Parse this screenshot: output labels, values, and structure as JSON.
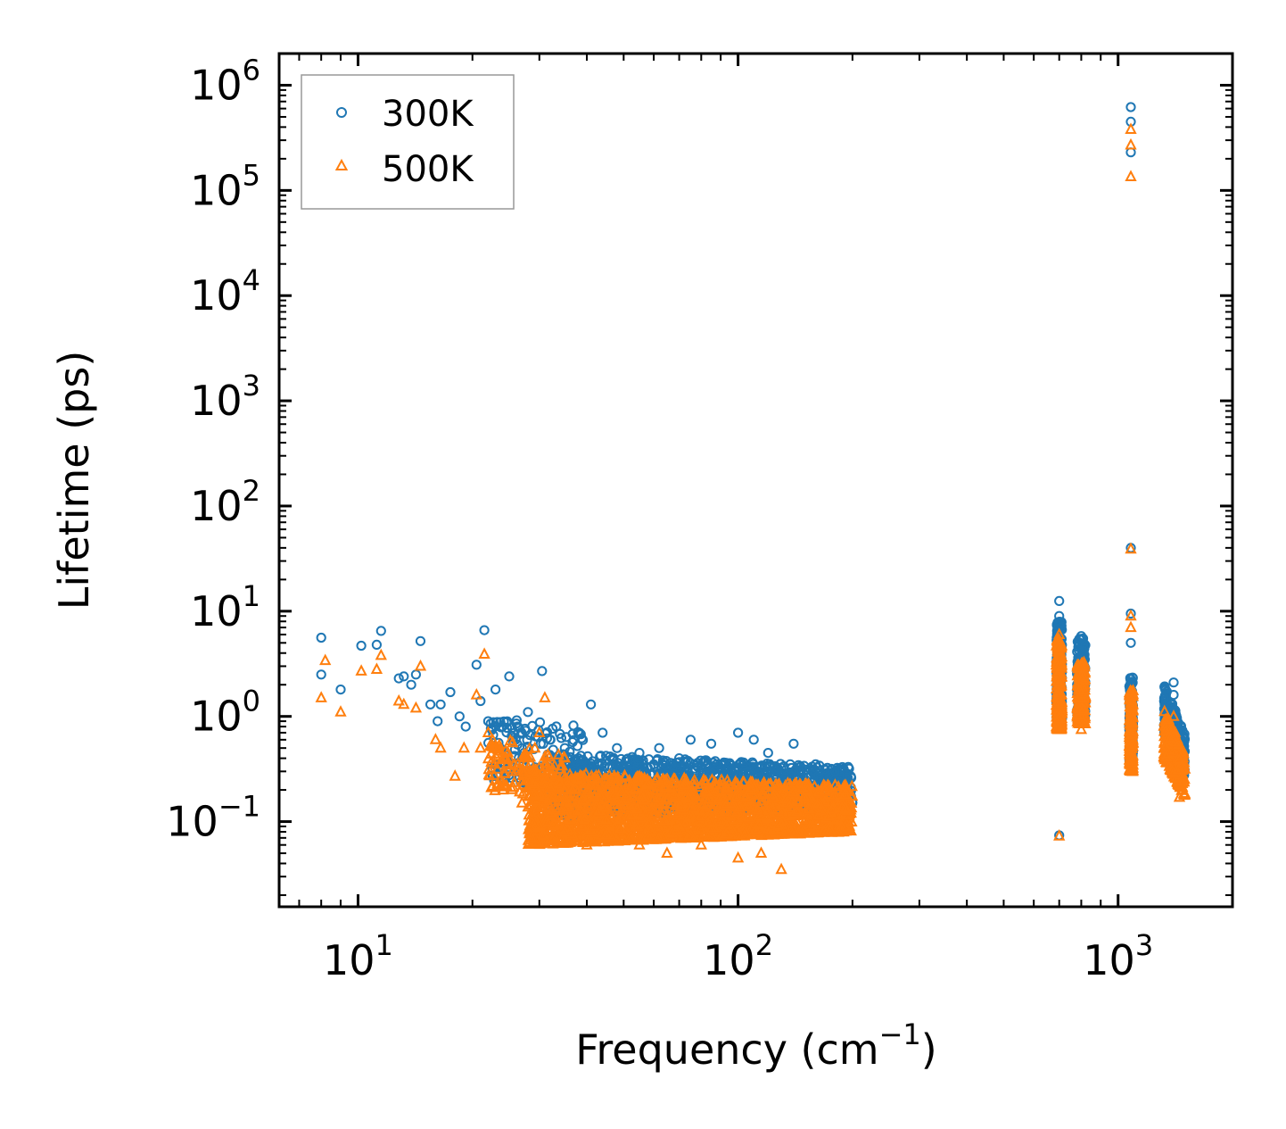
{
  "chart_data": {
    "type": "scatter",
    "title": "",
    "xlabel": "Frequency (cm",
    "xlabel_sup": "−1",
    "xlabel_suffix": ")",
    "ylabel": "Lifetime (ps)",
    "xscale": "log",
    "yscale": "log",
    "xlim": [
      6.2,
      2000
    ],
    "ylim": [
      0.0155,
      2000000
    ],
    "xticks": [
      {
        "base": "10",
        "exp": "1",
        "value": 10
      },
      {
        "base": "10",
        "exp": "2",
        "value": 100
      },
      {
        "base": "10",
        "exp": "3",
        "value": 1000
      }
    ],
    "yticks": [
      {
        "base": "10",
        "exp": "−1",
        "value": 0.1
      },
      {
        "base": "10",
        "exp": "0",
        "value": 1
      },
      {
        "base": "10",
        "exp": "1",
        "value": 10
      },
      {
        "base": "10",
        "exp": "2",
        "value": 100
      },
      {
        "base": "10",
        "exp": "3",
        "value": 1000
      },
      {
        "base": "10",
        "exp": "4",
        "value": 10000
      },
      {
        "base": "10",
        "exp": "5",
        "value": 100000
      },
      {
        "base": "10",
        "exp": "6",
        "value": 1000000
      }
    ],
    "legend_position": "top-left",
    "series": [
      {
        "name": "300K",
        "marker": "circle",
        "color": "#1f77b4",
        "points": [
          [
            8.0,
            5.6
          ],
          [
            8.0,
            2.5
          ],
          [
            9.0,
            1.8
          ],
          [
            10.2,
            4.7
          ],
          [
            11.2,
            4.8
          ],
          [
            11.5,
            6.5
          ],
          [
            12.8,
            2.3
          ],
          [
            13.2,
            2.4
          ],
          [
            13.8,
            2.0
          ],
          [
            14.2,
            2.5
          ],
          [
            14.6,
            5.2
          ],
          [
            15.5,
            1.3
          ],
          [
            16.2,
            0.9
          ],
          [
            16.5,
            1.3
          ],
          [
            17.5,
            1.7
          ],
          [
            18.5,
            1.0
          ],
          [
            19.2,
            0.8
          ],
          [
            20.5,
            3.1
          ],
          [
            21.0,
            1.4
          ],
          [
            21.5,
            6.6
          ],
          [
            22.0,
            0.9
          ],
          [
            23.0,
            1.8
          ],
          [
            24.0,
            0.8
          ],
          [
            25.0,
            2.4
          ],
          [
            26.0,
            0.6
          ],
          [
            27.0,
            0.5
          ],
          [
            28.0,
            1.1
          ],
          [
            30.5,
            2.7
          ],
          [
            32.0,
            0.6
          ],
          [
            35.0,
            0.5
          ],
          [
            38.0,
            0.4
          ],
          [
            41.0,
            1.3
          ],
          [
            44.0,
            0.7
          ],
          [
            48.0,
            0.5
          ],
          [
            55.0,
            0.45
          ],
          [
            62.0,
            0.5
          ],
          [
            70.0,
            0.4
          ],
          [
            75.0,
            0.6
          ],
          [
            85.0,
            0.55
          ],
          [
            100.0,
            0.7
          ],
          [
            110.0,
            0.6
          ],
          [
            120.0,
            0.45
          ],
          [
            140.0,
            0.55
          ],
          [
            160.0,
            0.35
          ],
          [
            180.0,
            0.3
          ],
          [
            195.0,
            0.33
          ],
          [
            700.0,
            12.5
          ],
          [
            700.0,
            9.0
          ],
          [
            700.0,
            0.074
          ],
          [
            800.0,
            5.8
          ],
          [
            1080.0,
            620000
          ],
          [
            1080.0,
            450000
          ],
          [
            1080.0,
            230000
          ],
          [
            1080.0,
            40.0
          ],
          [
            1080.0,
            9.5
          ],
          [
            1080.0,
            5.0
          ],
          [
            1400.0,
            2.1
          ],
          [
            1400.0,
            1.6
          ]
        ]
      },
      {
        "name": "500K",
        "marker": "triangle",
        "color": "#ff7f0e",
        "points": [
          [
            8.0,
            1.5
          ],
          [
            8.2,
            3.4
          ],
          [
            9.0,
            1.1
          ],
          [
            10.2,
            2.7
          ],
          [
            11.2,
            2.8
          ],
          [
            11.5,
            3.8
          ],
          [
            12.8,
            1.4
          ],
          [
            13.2,
            1.3
          ],
          [
            14.2,
            1.2
          ],
          [
            14.6,
            3.0
          ],
          [
            16.0,
            0.6
          ],
          [
            16.5,
            0.5
          ],
          [
            18.0,
            0.27
          ],
          [
            19.0,
            0.5
          ],
          [
            20.5,
            1.6
          ],
          [
            21.0,
            0.5
          ],
          [
            21.5,
            3.9
          ],
          [
            22.0,
            0.7
          ],
          [
            23.0,
            0.5
          ],
          [
            25.0,
            0.4
          ],
          [
            26.0,
            0.3
          ],
          [
            27.0,
            0.15
          ],
          [
            28.0,
            0.25
          ],
          [
            30.0,
            0.7
          ],
          [
            31.0,
            1.5
          ],
          [
            35.0,
            0.08
          ],
          [
            40.0,
            0.06
          ],
          [
            45.0,
            0.075
          ],
          [
            55.0,
            0.06
          ],
          [
            65.0,
            0.05
          ],
          [
            80.0,
            0.06
          ],
          [
            100.0,
            0.045
          ],
          [
            115.0,
            0.05
          ],
          [
            130.0,
            0.035
          ],
          [
            150.0,
            0.08
          ],
          [
            190.0,
            0.2
          ],
          [
            700.0,
            6.0
          ],
          [
            700.0,
            0.073
          ],
          [
            800.0,
            3.0
          ],
          [
            800.0,
            0.75
          ],
          [
            1080.0,
            380000
          ],
          [
            1080.0,
            270000
          ],
          [
            1080.0,
            135000
          ],
          [
            1080.0,
            39.0
          ],
          [
            1080.0,
            9.0
          ],
          [
            1080.0,
            7.0
          ],
          [
            1400.0,
            1.0
          ],
          [
            1450.0,
            0.17
          ]
        ]
      }
    ],
    "clusters": [
      {
        "series": "300K",
        "fmin": 32,
        "fmax": 200,
        "ymin_start": 0.11,
        "ymax_start": 0.45,
        "ymin_end": 0.14,
        "ymax_end": 0.33,
        "count": 1500
      },
      {
        "series": "300K",
        "fmin": 22,
        "fmax": 40,
        "ymin_start": 0.25,
        "ymax_start": 1.0,
        "ymin_end": 0.2,
        "ymax_end": 0.8,
        "count": 150
      },
      {
        "series": "500K",
        "fmin": 28,
        "fmax": 200,
        "ymin_start": 0.06,
        "ymax_start": 0.3,
        "ymin_end": 0.08,
        "ymax_end": 0.22,
        "count": 2200
      },
      {
        "series": "500K",
        "fmin": 22,
        "fmax": 35,
        "ymin_start": 0.2,
        "ymax_start": 0.65,
        "ymin_end": 0.15,
        "ymax_end": 0.5,
        "count": 130
      },
      {
        "series": "300K",
        "fmin": 688,
        "fmax": 712,
        "ymin_start": 0.9,
        "ymax_start": 8.0,
        "ymin_end": 0.9,
        "ymax_end": 8.0,
        "count": 260
      },
      {
        "series": "300K",
        "fmin": 780,
        "fmax": 820,
        "ymin_start": 0.9,
        "ymax_start": 5.5,
        "ymin_end": 0.9,
        "ymax_end": 5.5,
        "count": 200
      },
      {
        "series": "300K",
        "fmin": 1070,
        "fmax": 1095,
        "ymin_start": 0.38,
        "ymax_start": 2.4,
        "ymin_end": 0.38,
        "ymax_end": 2.4,
        "count": 200
      },
      {
        "series": "300K",
        "fmin": 1320,
        "fmax": 1500,
        "ymin_start": 0.7,
        "ymax_start": 2.0,
        "ymin_end": 0.25,
        "ymax_end": 0.7,
        "count": 260
      },
      {
        "series": "500K",
        "fmin": 688,
        "fmax": 712,
        "ymin_start": 0.75,
        "ymax_start": 5.5,
        "ymin_end": 0.75,
        "ymax_end": 5.5,
        "count": 260
      },
      {
        "series": "500K",
        "fmin": 780,
        "fmax": 820,
        "ymin_start": 0.85,
        "ymax_start": 3.3,
        "ymin_end": 0.85,
        "ymax_end": 3.3,
        "count": 200
      },
      {
        "series": "500K",
        "fmin": 1070,
        "fmax": 1095,
        "ymin_start": 0.3,
        "ymax_start": 1.8,
        "ymin_end": 0.3,
        "ymax_end": 1.8,
        "count": 200
      },
      {
        "series": "500K",
        "fmin": 1320,
        "fmax": 1500,
        "ymin_start": 0.4,
        "ymax_start": 1.2,
        "ymin_end": 0.17,
        "ymax_end": 0.45,
        "count": 260
      }
    ]
  }
}
